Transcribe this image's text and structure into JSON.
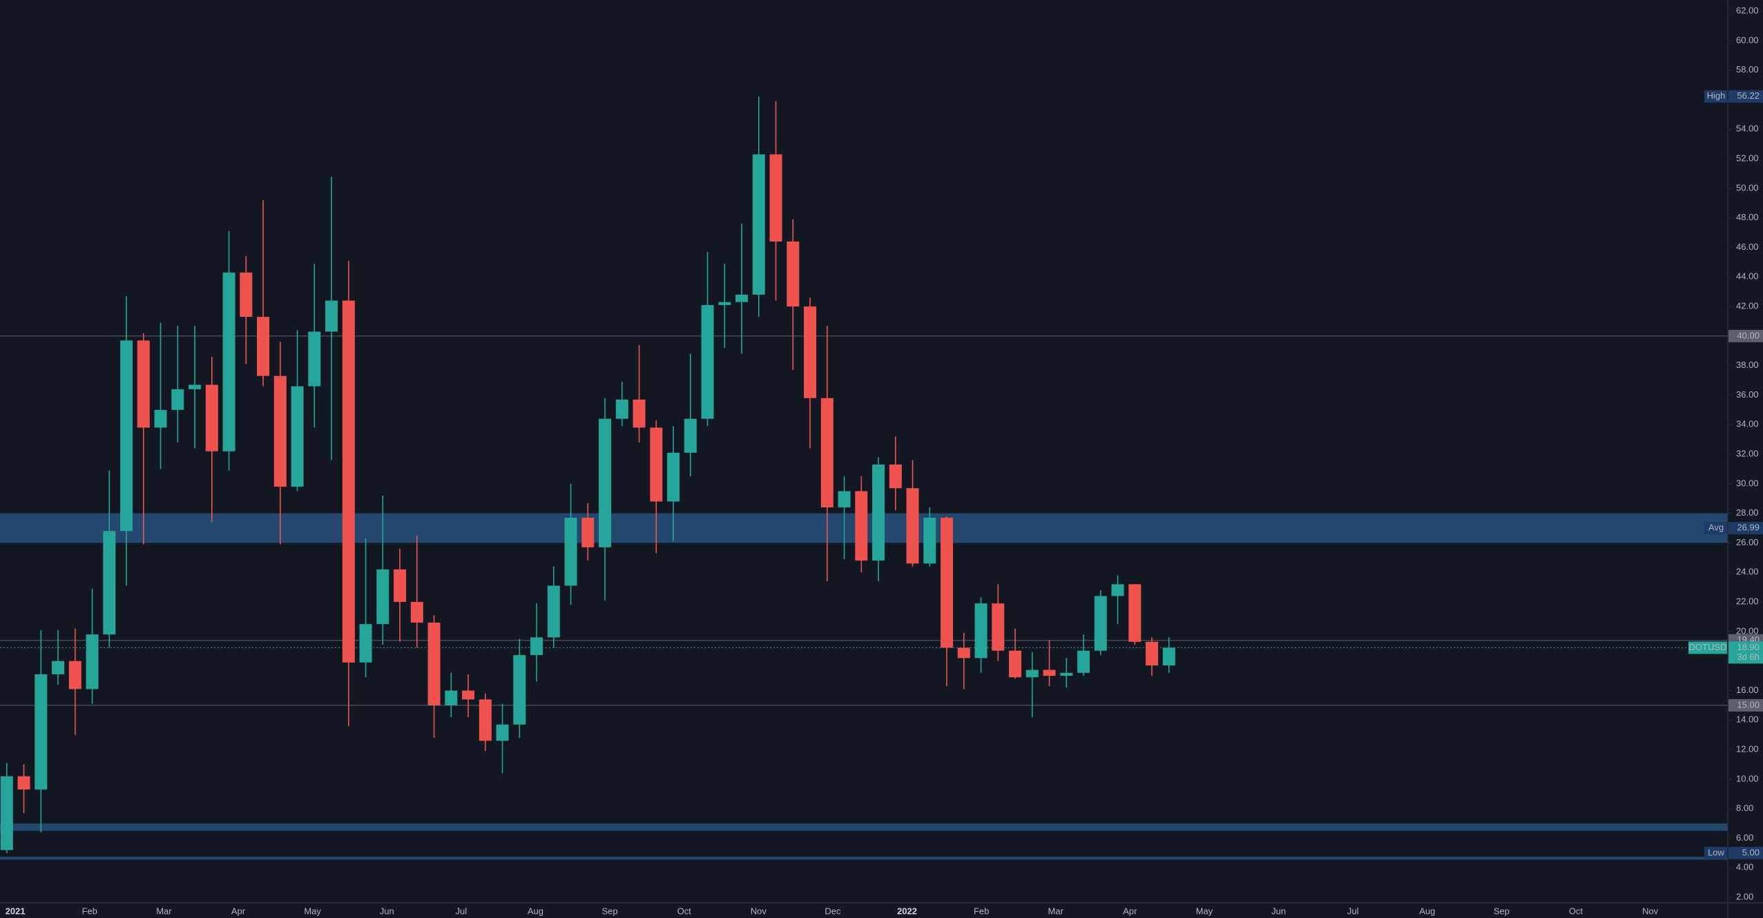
{
  "chart_data": {
    "type": "candlestick",
    "symbol": "DOTUSD",
    "up_color": "#26a69a",
    "down_color": "#ef5350",
    "zone_color": "#27507d",
    "grid": false,
    "ylim": [
      1.63,
      62.75
    ],
    "yticks": [
      {
        "value": 2,
        "label": "2.00"
      },
      {
        "value": 4,
        "label": "4.00"
      },
      {
        "value": 6,
        "label": "6.00"
      },
      {
        "value": 8,
        "label": "8.00"
      },
      {
        "value": 10,
        "label": "10.00"
      },
      {
        "value": 12,
        "label": "12.00"
      },
      {
        "value": 14,
        "label": "14.00"
      },
      {
        "value": 16,
        "label": "16.00"
      },
      {
        "value": 18,
        "label": "18.00"
      },
      {
        "value": 20,
        "label": "20.00"
      },
      {
        "value": 22,
        "label": "22.00"
      },
      {
        "value": 24,
        "label": "24.00"
      },
      {
        "value": 26,
        "label": "26.00"
      },
      {
        "value": 28,
        "label": "28.00"
      },
      {
        "value": 30,
        "label": "30.00"
      },
      {
        "value": 32,
        "label": "32.00"
      },
      {
        "value": 34,
        "label": "34.00"
      },
      {
        "value": 36,
        "label": "36.00"
      },
      {
        "value": 38,
        "label": "38.00"
      },
      {
        "value": 40,
        "label": "40.00"
      },
      {
        "value": 42,
        "label": "42.00"
      },
      {
        "value": 44,
        "label": "44.00"
      },
      {
        "value": 46,
        "label": "46.00"
      },
      {
        "value": 48,
        "label": "48.00"
      },
      {
        "value": 50,
        "label": "50.00"
      },
      {
        "value": 52,
        "label": "52.00"
      },
      {
        "value": 54,
        "label": "54.00"
      },
      {
        "value": 56,
        "label": "56.00"
      },
      {
        "value": 58,
        "label": "58.00"
      },
      {
        "value": 60,
        "label": "60.00"
      },
      {
        "value": 62,
        "label": "62.00"
      }
    ],
    "x_labels": [
      "2021",
      "Feb",
      "Mar",
      "Apr",
      "May",
      "Jun",
      "Jul",
      "Aug",
      "Sep",
      "Oct",
      "Nov",
      "Dec",
      "2022",
      "Feb",
      "Mar",
      "Apr",
      "May",
      "Jun",
      "Jul",
      "Aug",
      "Sep",
      "Oct",
      "Nov"
    ],
    "series": {
      "open": [
        5.2,
        10.2,
        9.3,
        17.1,
        18.0,
        16.1,
        19.8,
        26.8,
        39.7,
        33.8,
        35.0,
        36.4,
        36.7,
        32.2,
        44.3,
        41.3,
        37.3,
        29.8,
        36.6,
        40.3,
        42.4,
        17.9,
        20.5,
        24.2,
        22.0,
        20.6,
        15.0,
        16.0,
        15.4,
        12.6,
        13.7,
        18.4,
        19.6,
        23.1,
        27.7,
        25.7,
        34.4,
        35.7,
        33.8,
        28.8,
        32.1,
        34.4,
        42.1,
        42.3,
        42.8,
        52.3,
        46.4,
        42.0,
        35.8,
        28.4,
        29.5,
        24.8,
        31.3,
        29.7,
        24.6,
        27.7,
        18.9,
        18.2,
        21.9,
        18.7,
        16.9,
        17.4,
        17.0,
        17.2,
        18.7,
        22.4,
        23.2,
        19.3,
        17.7
      ],
      "high": [
        11.1,
        11.0,
        20.1,
        20.1,
        20.2,
        22.9,
        30.9,
        42.7,
        40.2,
        40.9,
        40.7,
        40.7,
        38.6,
        47.1,
        45.4,
        49.2,
        39.6,
        40.4,
        44.9,
        50.8,
        45.1,
        26.3,
        29.2,
        25.6,
        26.5,
        21.1,
        17.2,
        17.1,
        15.8,
        15.1,
        19.5,
        21.9,
        24.4,
        30.0,
        28.7,
        35.8,
        36.9,
        39.4,
        34.3,
        33.9,
        38.8,
        45.7,
        44.9,
        47.6,
        56.22,
        55.9,
        47.9,
        42.6,
        40.7,
        30.5,
        30.5,
        31.8,
        33.2,
        31.6,
        28.4,
        27.8,
        19.9,
        22.3,
        23.2,
        20.2,
        18.6,
        19.4,
        18.2,
        19.8,
        22.8,
        23.8,
        23.2,
        19.6,
        19.6
      ],
      "low": [
        5.0,
        7.7,
        6.4,
        16.4,
        13.0,
        15.1,
        18.9,
        23.1,
        25.9,
        31.0,
        32.8,
        32.4,
        27.4,
        30.9,
        38.1,
        36.6,
        25.9,
        29.5,
        33.8,
        31.6,
        13.6,
        16.9,
        19.1,
        19.3,
        18.9,
        12.8,
        14.2,
        14.2,
        11.9,
        10.4,
        12.8,
        16.6,
        18.9,
        21.8,
        24.8,
        22.1,
        33.9,
        32.8,
        25.3,
        26.1,
        30.5,
        33.9,
        39.2,
        38.8,
        41.3,
        42.4,
        37.7,
        32.4,
        23.4,
        24.9,
        24.0,
        23.4,
        28.2,
        24.4,
        24.4,
        16.3,
        16.1,
        17.2,
        18.0,
        16.8,
        14.2,
        16.3,
        16.2,
        17.0,
        18.4,
        20.5,
        19.1,
        17.0,
        17.2
      ],
      "close": [
        10.2,
        9.3,
        17.1,
        18.0,
        16.1,
        19.8,
        26.8,
        39.7,
        33.8,
        35.0,
        36.4,
        36.7,
        32.2,
        44.3,
        41.3,
        37.3,
        29.8,
        36.6,
        40.3,
        42.4,
        17.9,
        20.5,
        24.2,
        22.0,
        20.6,
        15.0,
        16.0,
        15.4,
        12.6,
        13.7,
        18.4,
        19.6,
        23.1,
        27.7,
        25.7,
        34.4,
        35.7,
        33.8,
        28.8,
        32.1,
        34.4,
        42.1,
        42.3,
        42.8,
        52.3,
        46.4,
        42.0,
        35.8,
        28.4,
        29.5,
        24.8,
        31.3,
        29.7,
        24.6,
        27.7,
        18.9,
        18.2,
        21.9,
        18.7,
        16.9,
        17.4,
        17.0,
        17.2,
        18.7,
        22.4,
        23.2,
        19.3,
        17.7,
        18.9
      ]
    },
    "zones": [
      {
        "from": 26,
        "to": 28
      },
      {
        "from": 6.5,
        "to": 7.0
      },
      {
        "from": 4.55,
        "to": 4.75
      }
    ],
    "price_lines": [
      {
        "value": 40,
        "label": "40.00"
      },
      {
        "value": 19.4,
        "label": "19.40"
      },
      {
        "value": 15,
        "label": "15.00"
      }
    ],
    "stats": [
      {
        "name": "High",
        "value": 56.22
      },
      {
        "name": "Avg",
        "value": 26.99
      },
      {
        "name": "Low",
        "value": 5,
        "label": "5.00"
      }
    ],
    "last_price": {
      "value": 18.9,
      "label": "18.90",
      "countdown": "3d 6h"
    }
  }
}
